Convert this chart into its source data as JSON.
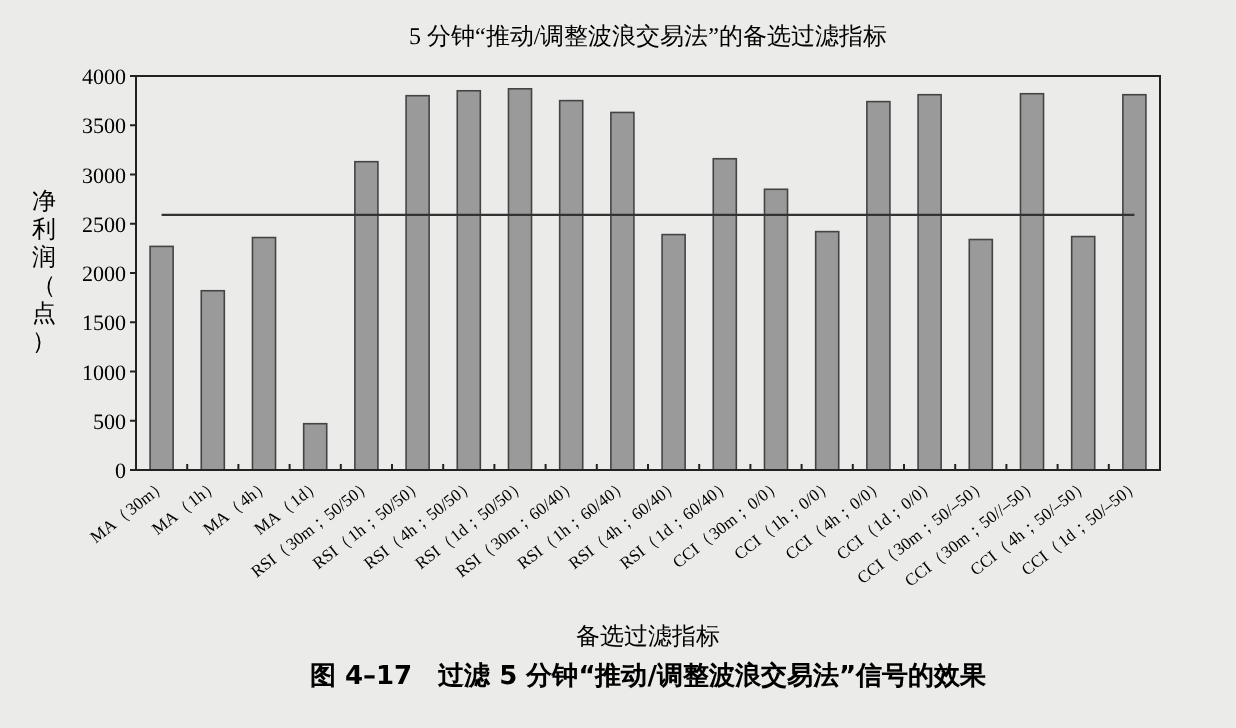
{
  "chart_data": {
    "type": "bar",
    "title": "5 分钟“推动/调整波浪交易法”的备选过滤指标",
    "xlabel": "备选过滤指标",
    "ylabel": "净利润（点）",
    "annotations": [
      "图 4–17　过滤 5 分钟“推动/调整波浪交易法”信号的效果"
    ],
    "categories": [
      "MA（30m）",
      "MA（1h）",
      "MA（4h）",
      "MA（1d）",
      "RSI（30m；50/50）",
      "RSI（1h；50/50）",
      "RSI（4h；50/50）",
      "RSI（1d；50/50）",
      "RSI（30m；60/40）",
      "RSI（1h；60/40）",
      "RSI（4h；60/40）",
      "RSI（1d；60/40）",
      "CCI（30m；0/0）",
      "CCI（1h；0/0）",
      "CCI（4h；0/0）",
      "CCI（1d；0/0）",
      "CCI（30m；50/–50）",
      "CCI（30m；50//–50）",
      "CCI（4h；50/–50）",
      "CCI（1d；50/–50）"
    ],
    "values": [
      2270,
      1820,
      2360,
      470,
      3130,
      3800,
      3850,
      3870,
      3750,
      3630,
      2390,
      3160,
      2850,
      2420,
      3740,
      3810,
      2340,
      3820,
      2370,
      3810
    ],
    "color": "#9a9a9a",
    "ylim": [
      0,
      4000
    ],
    "yticks": [
      0,
      500,
      1000,
      1500,
      2000,
      2500,
      3000,
      3500,
      4000
    ],
    "ref_lines": [
      {
        "axis": "y",
        "value": 2590,
        "color": "#333333"
      }
    ]
  }
}
